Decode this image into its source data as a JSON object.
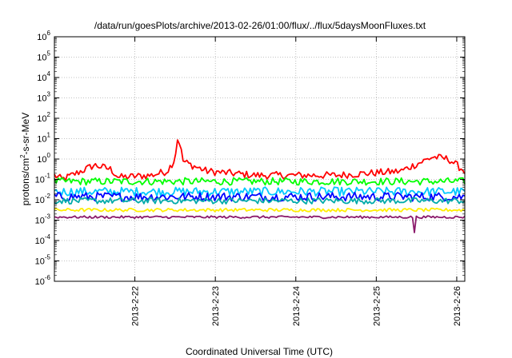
{
  "chart_data": {
    "type": "line",
    "title": "/data/run/goesPlots/archive/2013-02-26/01:00/flux/../flux/5daysMoonFluxes.txt",
    "xlabel": "Coordinated Universal Time (UTC)",
    "ylabel": "protons/cm2-s-sr-MeV",
    "yscale": "log",
    "ylim_exp": [
      -6,
      6
    ],
    "xlim_days": [
      21.0,
      26.1
    ],
    "x_ticks": [
      {
        "label": "2013-2-22",
        "day": 22
      },
      {
        "label": "2013-2-23",
        "day": 23
      },
      {
        "label": "2013-2-24",
        "day": 24
      },
      {
        "label": "2013-2-25",
        "day": 25
      },
      {
        "label": "2013-2-26",
        "day": 26
      }
    ],
    "y_tick_exponents": [
      "-6",
      "-5",
      "-4",
      "-3",
      "-2",
      "-1",
      "0",
      "1",
      "2",
      "3",
      "4",
      "5",
      "6"
    ],
    "grid": true,
    "legend": "none",
    "series": [
      {
        "color": "#ff0000",
        "baseline_log": -0.8,
        "noise": 0.18,
        "anchors": [
          [
            21.0,
            -0.8
          ],
          [
            21.1,
            -1.0
          ],
          [
            21.5,
            -0.3
          ],
          [
            21.7,
            -0.5
          ],
          [
            21.8,
            -0.9
          ],
          [
            22.2,
            -0.8
          ],
          [
            22.4,
            -0.6
          ],
          [
            22.5,
            0.0
          ],
          [
            22.52,
            1.0
          ],
          [
            22.55,
            0.9
          ],
          [
            22.6,
            -0.1
          ],
          [
            22.7,
            -0.3
          ],
          [
            22.9,
            -0.6
          ],
          [
            23.5,
            -0.8
          ],
          [
            24.5,
            -0.8
          ],
          [
            25.3,
            -0.6
          ],
          [
            25.7,
            0.1
          ],
          [
            25.9,
            0.0
          ],
          [
            26.1,
            -0.6
          ]
        ]
      },
      {
        "color": "#00ff00",
        "baseline_log": -1.1,
        "noise": 0.18,
        "anchors": []
      },
      {
        "color": "#00c8ff",
        "baseline_log": -1.6,
        "noise": 0.22,
        "anchors": []
      },
      {
        "color": "#0000ff",
        "baseline_log": -1.85,
        "noise": 0.22,
        "anchors": []
      },
      {
        "color": "#00aaaa",
        "baseline_log": -2.05,
        "noise": 0.15,
        "anchors": []
      },
      {
        "color": "#ffee00",
        "baseline_log": -2.5,
        "noise": 0.08,
        "anchors": []
      },
      {
        "color": "#8b1a6b",
        "baseline_log": -2.85,
        "noise": 0.06,
        "anchors": [
          [
            25.48,
            -3.6
          ]
        ]
      }
    ]
  }
}
